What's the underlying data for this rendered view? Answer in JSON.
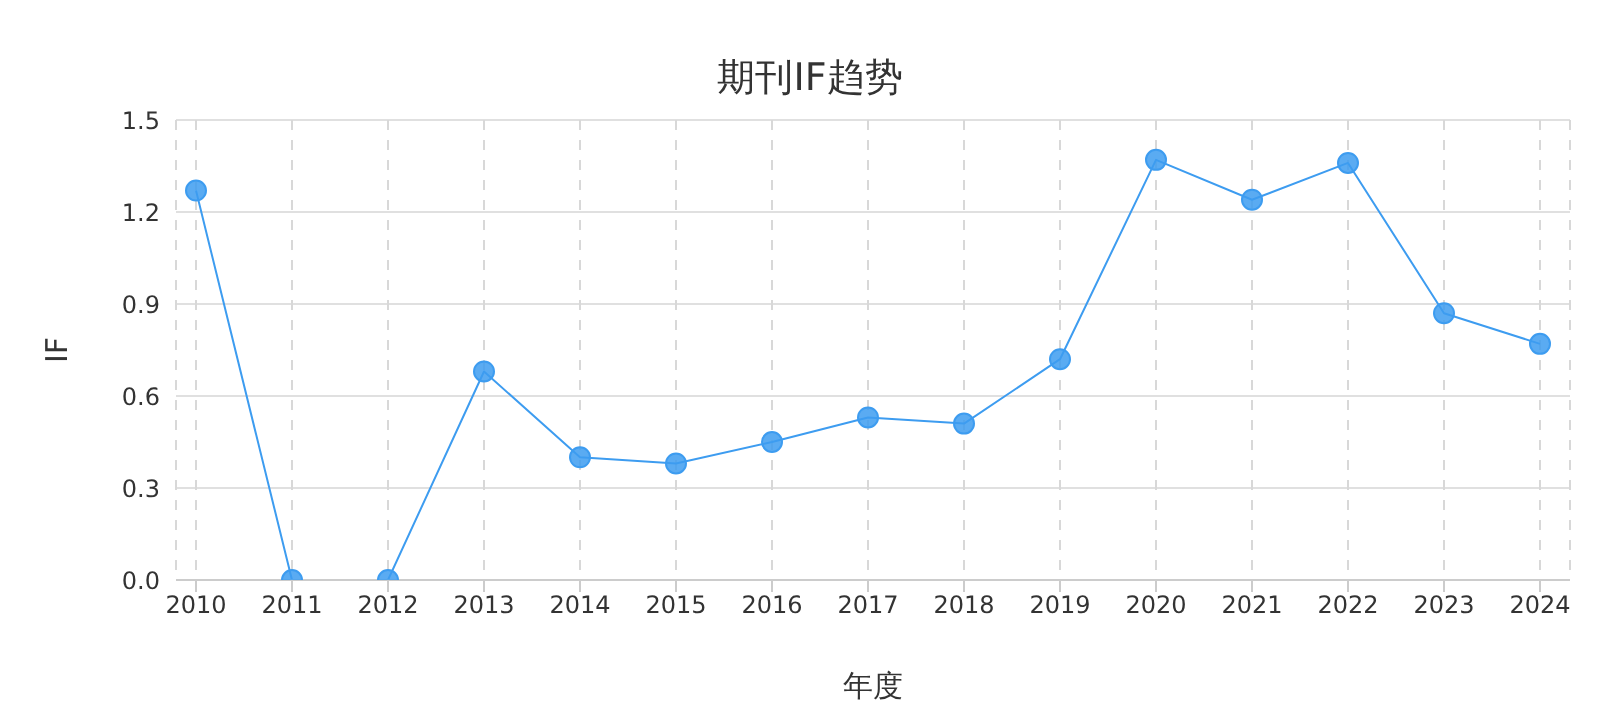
{
  "chart_data": {
    "type": "line",
    "title": "期刊IF趋势",
    "xlabel": "年度",
    "ylabel": "IF",
    "categories": [
      "2010",
      "2011",
      "2012",
      "2013",
      "2014",
      "2015",
      "2016",
      "2017",
      "2018",
      "2019",
      "2020",
      "2021",
      "2022",
      "2023",
      "2024"
    ],
    "series": [
      {
        "color": "#3d9cf0",
        "values": [
          1.27,
          0,
          0,
          0.68,
          0.4,
          0.38,
          0.45,
          0.53,
          0.51,
          0.72,
          1.37,
          1.24,
          1.36,
          0.87,
          0.77
        ]
      }
    ],
    "ylim": [
      0,
      1.5
    ],
    "yticks": [
      {
        "value": 0,
        "label": "0.0"
      },
      0.3,
      0.6,
      0.9,
      1.2,
      1.5
    ],
    "grid": true,
    "marker": "circle",
    "line_style": "solid"
  }
}
